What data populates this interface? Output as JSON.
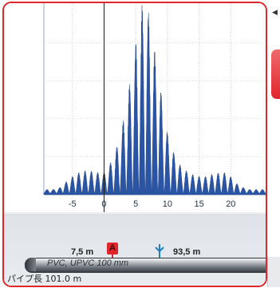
{
  "chart": {
    "x_ticks": [
      "-5",
      "0",
      "5",
      "10",
      "15",
      "20"
    ],
    "accent": "#e1262b",
    "series_color": "#2a55a4"
  },
  "chart_data": {
    "type": "area",
    "title": "",
    "xlabel": "",
    "ylabel": "",
    "xlim": [
      -9.5,
      25.5
    ],
    "ylim": [
      0,
      1
    ],
    "grid": true,
    "x": [
      -9.0,
      -8.0,
      -7.0,
      -6.0,
      -5.0,
      -4.0,
      -3.0,
      -2.0,
      -1.0,
      0.0,
      1.0,
      2.0,
      3.0,
      4.0,
      5.0,
      6.0,
      7.0,
      8.0,
      9.0,
      10.0,
      11.0,
      12.0,
      13.0,
      14.0,
      15.0,
      16.0,
      17.0,
      18.0,
      19.0,
      20.0,
      21.0,
      22.0,
      23.0,
      24.0,
      25.0
    ],
    "y": [
      0.02,
      0.02,
      0.03,
      0.06,
      0.09,
      0.11,
      0.12,
      0.12,
      0.11,
      0.11,
      0.16,
      0.25,
      0.38,
      0.58,
      0.8,
      1.0,
      0.98,
      0.75,
      0.55,
      0.32,
      0.22,
      0.15,
      0.12,
      0.1,
      0.09,
      0.09,
      0.1,
      0.11,
      0.11,
      0.09,
      0.05,
      0.03,
      0.02,
      0.02,
      0.02
    ]
  },
  "markers": {
    "a_position": "7,5 m",
    "a_label": "A",
    "sensor_position": "93,5 m"
  },
  "pipe": {
    "material": "PVC, UPVC 100 mm",
    "length_label": "パイプ長 101.0 m"
  },
  "side": {
    "arrow": "◀"
  }
}
